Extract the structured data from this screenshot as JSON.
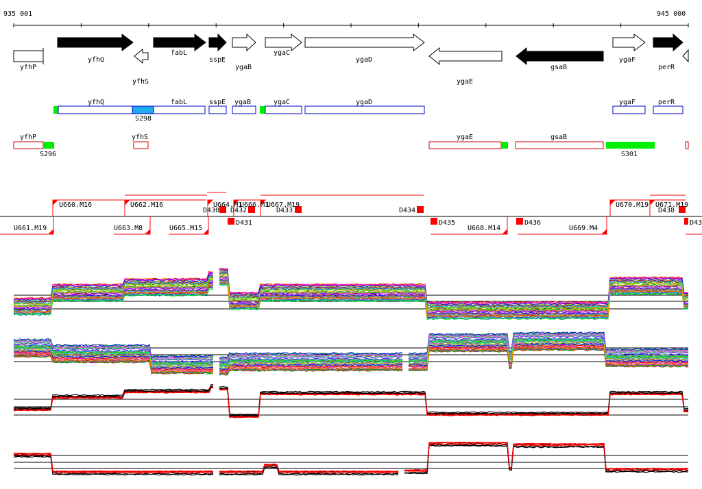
{
  "ruler": {
    "start_label": "935 001",
    "end_label": "945 000"
  },
  "genes_forward": [
    {
      "name": "yfhQ",
      "filled": true
    },
    {
      "name": "fabL",
      "filled": true
    },
    {
      "name": "sspE",
      "filled": true
    },
    {
      "name": "ygaB",
      "filled": false
    },
    {
      "name": "ygaC",
      "filled": false
    },
    {
      "name": "ygaD",
      "filled": false
    },
    {
      "name": "ygaF",
      "filled": false
    },
    {
      "name": "perR",
      "filled": true
    }
  ],
  "genes_reverse": [
    {
      "name": "yfhP",
      "filled": false
    },
    {
      "name": "yfhS",
      "filled": false
    },
    {
      "name": "ygaE",
      "filled": false
    },
    {
      "name": "gsaB",
      "filled": true
    }
  ],
  "forward_transcripts": [
    {
      "name": "yfhQ"
    },
    {
      "name": "fabL"
    },
    {
      "name": "sspE"
    },
    {
      "name": "ygaB"
    },
    {
      "name": "ygaC"
    },
    {
      "name": "ygaD"
    },
    {
      "name": "ygaF"
    },
    {
      "name": "perR"
    }
  ],
  "forward_sites": [
    {
      "label": "S298"
    }
  ],
  "reverse_transcripts": [
    {
      "name": "yfhP"
    },
    {
      "name": "yfhS"
    },
    {
      "name": "ygaE"
    },
    {
      "name": "gsaB"
    }
  ],
  "reverse_sites": [
    {
      "label": "S296"
    },
    {
      "label": "S301"
    }
  ],
  "upper_labels": [
    {
      "text": "U660.M16"
    },
    {
      "text": "U662.M16"
    },
    {
      "text": "U664.M1"
    },
    {
      "text": "U666.M1"
    },
    {
      "text": "U667.M19"
    },
    {
      "text": "U670.M19"
    },
    {
      "text": "U671.M19"
    },
    {
      "text": "D430"
    },
    {
      "text": "D432"
    },
    {
      "text": "D433"
    },
    {
      "text": "D434"
    },
    {
      "text": "D438"
    }
  ],
  "lower_labels": [
    {
      "text": "U661.M19"
    },
    {
      "text": "U663.M8"
    },
    {
      "text": "U665.M15"
    },
    {
      "text": "D431"
    },
    {
      "text": "D435"
    },
    {
      "text": "U668.M14"
    },
    {
      "text": "D436"
    },
    {
      "text": "U669.M4"
    },
    {
      "text": "D43"
    }
  ],
  "colors": {
    "gene_fill": "#000000",
    "forward_box": "#0000cc",
    "reverse_box": "#cc0000",
    "site_green": "#00ee00",
    "site_blue": "#22a8ee",
    "marker_red": "#ff0000"
  },
  "expression_panels": [
    {
      "name": "forward-strand-profiles",
      "style": "multicolor"
    },
    {
      "name": "reverse-strand-profiles",
      "style": "multicolor"
    },
    {
      "name": "forward-strand-summary",
      "style": "black-red"
    },
    {
      "name": "reverse-strand-summary",
      "style": "black-red"
    }
  ]
}
